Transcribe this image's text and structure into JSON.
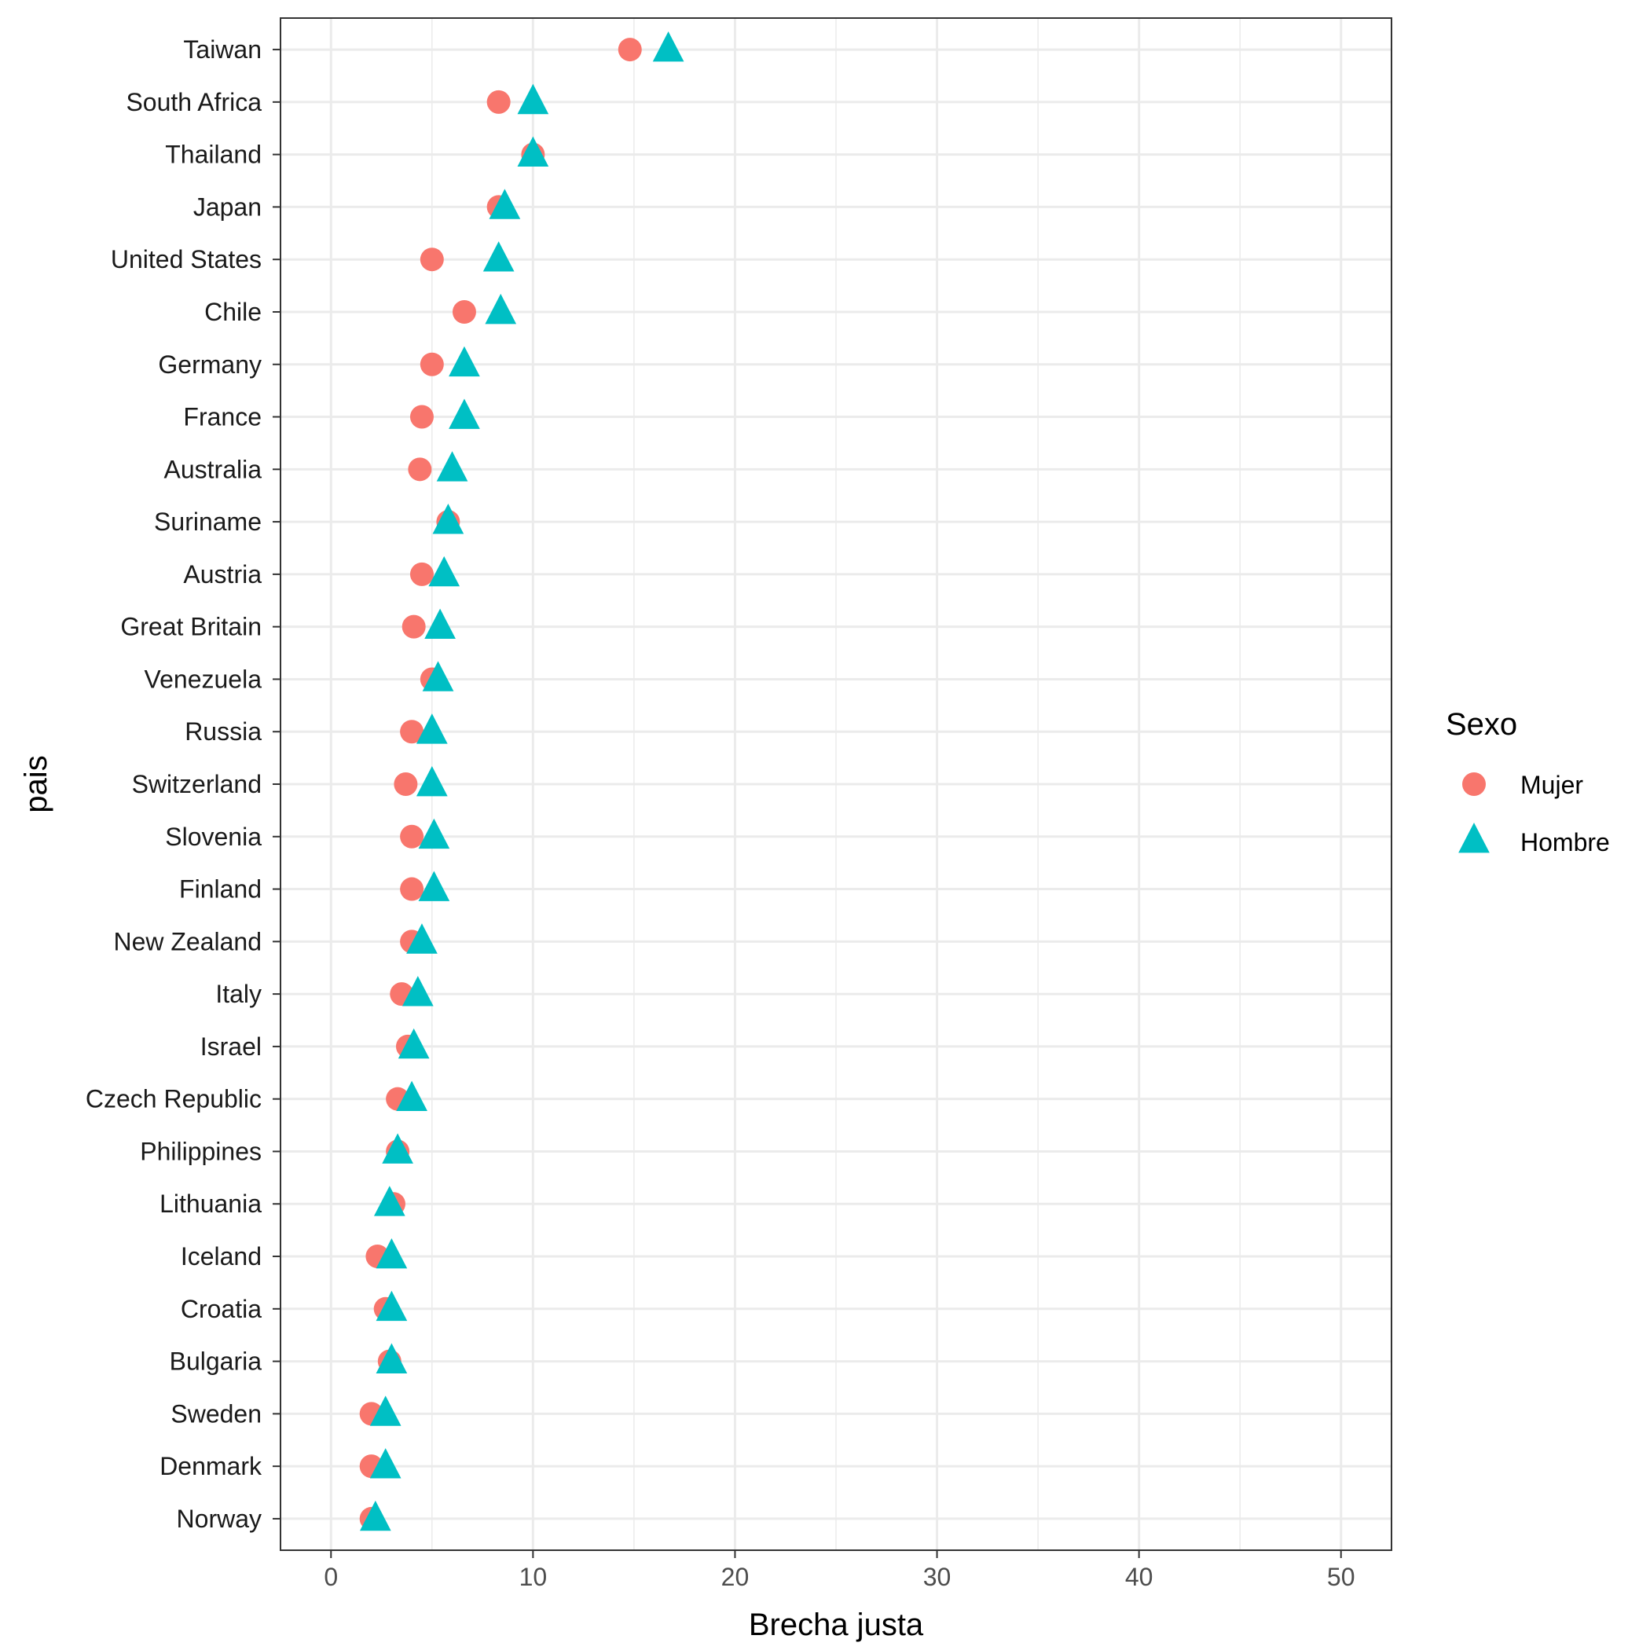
{
  "chart_data": {
    "type": "scatter",
    "title": "",
    "xlabel": "Brecha justa",
    "ylabel": "pais",
    "xlim": [
      -2.5,
      52.5
    ],
    "xticks": [
      0,
      10,
      20,
      30,
      40,
      50
    ],
    "grid": true,
    "highlight_category": "Chile",
    "highlight_color": "#ff0000",
    "categories": [
      "Taiwan",
      "South Africa",
      "Thailand",
      "Japan",
      "United States",
      "Chile",
      "Germany",
      "France",
      "Australia",
      "Suriname",
      "Austria",
      "Great Britain",
      "Venezuela",
      "Russia",
      "Switzerland",
      "Slovenia",
      "Finland",
      "New Zealand",
      "Italy",
      "Israel",
      "Czech Republic",
      "Philippines",
      "Lithuania",
      "Iceland",
      "Croatia",
      "Bulgaria",
      "Sweden",
      "Denmark",
      "Norway"
    ],
    "legend": {
      "title": "Sexo",
      "position": "right"
    },
    "series": [
      {
        "name": "Mujer",
        "shape": "circle",
        "color": "#F8766D",
        "values": [
          14.8,
          8.3,
          10.0,
          8.3,
          5.0,
          6.6,
          5.0,
          4.5,
          4.4,
          5.8,
          4.5,
          4.1,
          5.0,
          4.0,
          3.7,
          4.0,
          4.0,
          4.0,
          3.5,
          3.8,
          3.3,
          3.3,
          3.1,
          2.3,
          2.7,
          2.9,
          2.0,
          2.0,
          2.0
        ]
      },
      {
        "name": "Hombre",
        "shape": "triangle",
        "color": "#00BFC4",
        "values": [
          16.7,
          10.0,
          10.0,
          8.6,
          8.3,
          8.4,
          6.6,
          6.6,
          6.0,
          5.8,
          5.6,
          5.4,
          5.3,
          5.0,
          5.0,
          5.1,
          5.1,
          4.5,
          4.3,
          4.1,
          4.0,
          3.3,
          2.9,
          3.0,
          3.0,
          3.0,
          2.7,
          2.7,
          2.2
        ]
      }
    ]
  }
}
